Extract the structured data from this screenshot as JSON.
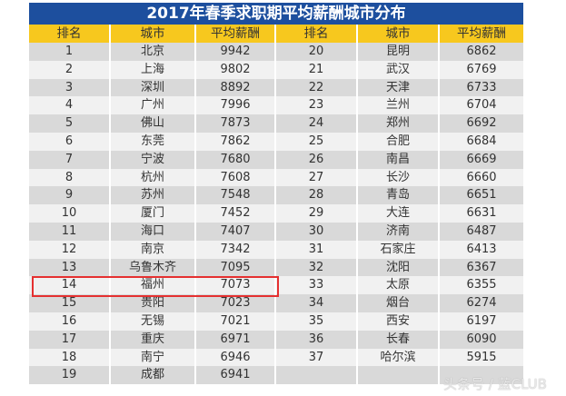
{
  "title": "2017年春季求职期平均薪酬城市分布",
  "headers": [
    "排名",
    "城市",
    "平均薪酬",
    "排名",
    "城市",
    "平均薪酬"
  ],
  "left": [
    [
      "1",
      "北京",
      "9942"
    ],
    [
      "2",
      "上海",
      "9802"
    ],
    [
      "3",
      "深圳",
      "8892"
    ],
    [
      "4",
      "广州",
      "7996"
    ],
    [
      "5",
      "佛山",
      "7873"
    ],
    [
      "6",
      "东莞",
      "7862"
    ],
    [
      "7",
      "宁波",
      "7680"
    ],
    [
      "8",
      "杭州",
      "7608"
    ],
    [
      "9",
      "苏州",
      "7548"
    ],
    [
      "10",
      "厦门",
      "7452"
    ],
    [
      "11",
      "海口",
      "7407"
    ],
    [
      "12",
      "南京",
      "7342"
    ],
    [
      "13",
      "乌鲁木齐",
      "7095"
    ],
    [
      "14",
      "福州",
      "7073"
    ],
    [
      "15",
      "贵阳",
      "7023"
    ],
    [
      "16",
      "无锡",
      "7021"
    ],
    [
      "17",
      "重庆",
      "6971"
    ],
    [
      "18",
      "南宁",
      "6946"
    ],
    [
      "19",
      "成都",
      "6941"
    ]
  ],
  "right": [
    [
      "20",
      "昆明",
      "6862"
    ],
    [
      "21",
      "武汉",
      "6769"
    ],
    [
      "22",
      "天津",
      "6733"
    ],
    [
      "23",
      "兰州",
      "6704"
    ],
    [
      "24",
      "郑州",
      "6692"
    ],
    [
      "25",
      "合肥",
      "6684"
    ],
    [
      "26",
      "南昌",
      "6669"
    ],
    [
      "27",
      "长沙",
      "6660"
    ],
    [
      "28",
      "青岛",
      "6651"
    ],
    [
      "29",
      "大连",
      "6631"
    ],
    [
      "30",
      "济南",
      "6487"
    ],
    [
      "31",
      "石家庄",
      "6413"
    ],
    [
      "32",
      "沈阳",
      "6367"
    ],
    [
      "33",
      "太原",
      "6355"
    ],
    [
      "34",
      "烟台",
      "6274"
    ],
    [
      "35",
      "西安",
      "6197"
    ],
    [
      "36",
      "长春",
      "6090"
    ],
    [
      "37",
      "哈尔滨",
      "5915"
    ],
    [
      "",
      "",
      ""
    ]
  ],
  "highlighted_rank": "14",
  "watermark": "头条号 / 蓝CLUB",
  "colors": {
    "title_bg": "#1d4f9e",
    "header_bg": "#f7c81e",
    "highlight": "#e53030"
  }
}
